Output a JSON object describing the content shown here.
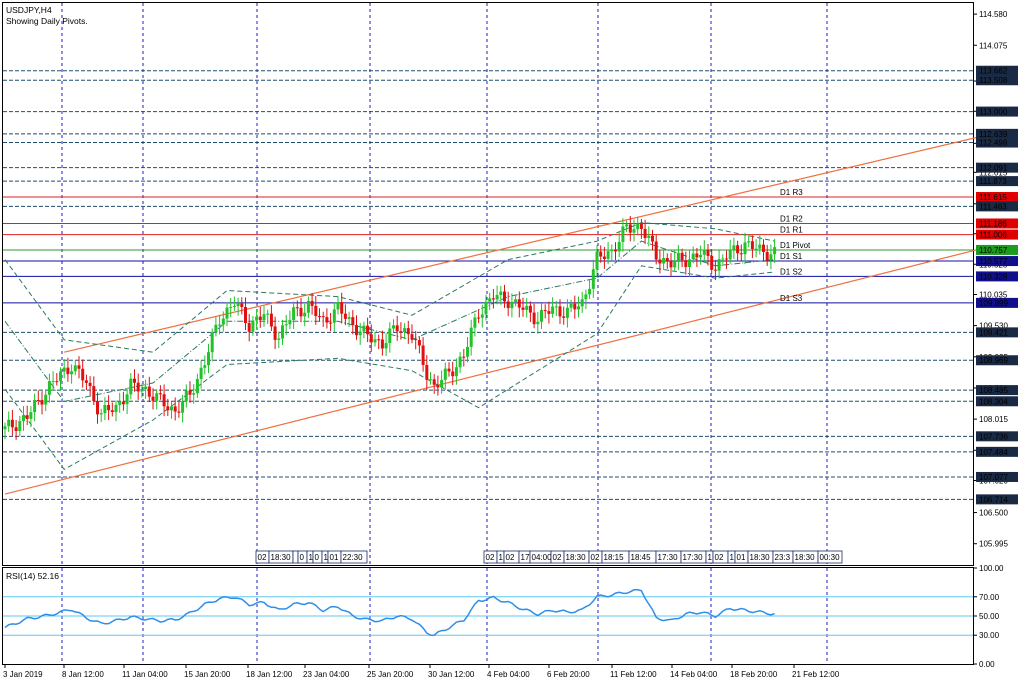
{
  "header": {
    "symbol": "USDJPY,H4",
    "subtitle": "Showing Daily Pivots."
  },
  "colors": {
    "grid": "#1e1ec8",
    "candle_up": "#22c22a",
    "candle_down": "#e01010",
    "channel": "#f07040",
    "bollinger": "#2b7a60",
    "pivot_line": "#2c9a2c",
    "resistance_line": "#e02020",
    "support_line": "#1010a0",
    "rsi_line": "#2f8fe8",
    "rsi_levels": "#5fc8f0",
    "label_resistance": "#e00000",
    "label_pivot": "#1c9c1c",
    "label_support": "#10108c",
    "label_dark": "#1a2a44"
  },
  "chart_data": [
    {
      "type": "candlestick",
      "title": "USDJPY,H4",
      "subtitle": "Showing Daily Pivots.",
      "ylim": [
        105.65,
        114.76
      ],
      "y_axis_ticks": [
        "114.580",
        "114.075",
        "113.495",
        "113.005",
        "112.485",
        "112.015",
        "111.505",
        "111.020",
        "110.525",
        "110.035",
        "109.530",
        "109.025",
        "108.520",
        "108.015",
        "107.510",
        "107.020",
        "106.500",
        "105.995"
      ],
      "x_tick_labels": [
        "3 Jan 2019",
        "8 Jan 12:00",
        "11 Jan 04:00",
        "15 Jan 20:00",
        "18 Jan 12:00",
        "23 Jan 04:00",
        "25 Jan 20:00",
        "30 Jan 12:00",
        "4 Feb 04:00",
        "6 Feb 20:00",
        "11 Feb 12:00",
        "14 Feb 04:00",
        "18 Feb 20:00",
        "21 Feb 12:00"
      ],
      "grid": true,
      "price_levels": [
        {
          "value": "113.662",
          "style": "dark"
        },
        {
          "value": "113.508",
          "style": "dark"
        },
        {
          "value": "113.000",
          "style": "dark"
        },
        {
          "value": "112.639",
          "style": "dark"
        },
        {
          "value": "112.498",
          "style": "dark"
        },
        {
          "value": "112.091",
          "style": "dark"
        },
        {
          "value": "111.873",
          "style": "dark"
        },
        {
          "value": "111.615",
          "style": "resistance"
        },
        {
          "value": "111.463",
          "style": "dark"
        },
        {
          "value": "111.186",
          "style": "resistance"
        },
        {
          "value": "111.006",
          "style": "resistance"
        },
        {
          "value": "110.757",
          "style": "pivot"
        },
        {
          "value": "110.577",
          "style": "support"
        },
        {
          "value": "110.328",
          "style": "support"
        },
        {
          "value": "109.899",
          "style": "support"
        },
        {
          "value": "109.421",
          "style": "dark"
        },
        {
          "value": "108.969",
          "style": "dark"
        },
        {
          "value": "108.485",
          "style": "dark"
        },
        {
          "value": "108.304",
          "style": "dark"
        },
        {
          "value": "107.736",
          "style": "dark"
        },
        {
          "value": "107.484",
          "style": "dark"
        },
        {
          "value": "107.077",
          "style": "dark"
        },
        {
          "value": "106.714",
          "style": "dark"
        }
      ],
      "pivot_labels": [
        {
          "label": "D1 R3",
          "value": 111.615,
          "style": "resistance"
        },
        {
          "label": "D1 R2",
          "value": 111.186,
          "style": "resistance"
        },
        {
          "label": "D1 R1",
          "value": 111.006,
          "style": "resistance"
        },
        {
          "label": "D1 Pivot",
          "value": 110.757,
          "style": "pivot"
        },
        {
          "label": "D1 S1",
          "value": 110.577,
          "style": "support"
        },
        {
          "label": "D1 S2",
          "value": 110.328,
          "style": "support"
        },
        {
          "label": "D1 S3",
          "value": 109.899,
          "style": "support"
        }
      ],
      "session_labels_group1": [
        "02",
        "18:30",
        "",
        "0",
        "1",
        "0",
        "1",
        "01",
        "22:30"
      ],
      "session_labels_group2": [
        "02",
        "1",
        "02",
        "17",
        "04:00",
        "02",
        "18:30",
        "02",
        "18:15",
        "18:45",
        "17:30",
        "17:30",
        "1",
        "02",
        "1",
        "01",
        "18:30",
        "23:3",
        "18:30",
        "00:30"
      ],
      "price_path": [
        [
          0,
          107.85
        ],
        [
          3,
          108.05
        ],
        [
          6,
          108.55
        ],
        [
          9,
          108.9
        ],
        [
          11,
          108.6
        ],
        [
          13,
          108.1
        ],
        [
          15,
          108.2
        ],
        [
          17,
          108.55
        ],
        [
          19,
          108.5
        ],
        [
          21,
          108.3
        ],
        [
          23,
          108.15
        ],
        [
          25,
          108.4
        ],
        [
          27,
          108.95
        ],
        [
          29,
          109.65
        ],
        [
          31,
          109.9
        ],
        [
          33,
          109.55
        ],
        [
          35,
          109.7
        ],
        [
          37,
          109.35
        ],
        [
          39,
          109.75
        ],
        [
          41,
          109.85
        ],
        [
          43,
          109.6
        ],
        [
          45,
          109.8
        ],
        [
          47,
          109.55
        ],
        [
          49,
          109.35
        ],
        [
          51,
          109.25
        ],
        [
          53,
          109.5
        ],
        [
          55,
          109.4
        ],
        [
          57,
          108.75
        ],
        [
          58,
          108.55
        ],
        [
          60,
          108.75
        ],
        [
          62,
          109.05
        ],
        [
          64,
          109.75
        ],
        [
          66,
          110.0
        ],
        [
          68,
          109.95
        ],
        [
          70,
          109.8
        ],
        [
          72,
          109.65
        ],
        [
          74,
          109.8
        ],
        [
          76,
          109.75
        ],
        [
          78,
          109.9
        ],
        [
          80,
          110.6
        ],
        [
          82,
          110.75
        ],
        [
          84,
          111.1
        ],
        [
          86,
          111.15
        ],
        [
          88,
          110.65
        ],
        [
          90,
          110.55
        ],
        [
          92,
          110.6
        ],
        [
          94,
          110.7
        ],
        [
          96,
          110.5
        ],
        [
          98,
          110.7
        ],
        [
          100,
          110.85
        ],
        [
          102,
          110.75
        ],
        [
          104,
          110.7
        ]
      ],
      "channel_upper": [
        [
          8,
          109.1
        ],
        [
          132,
          112.6
        ]
      ],
      "channel_lower": [
        [
          0,
          106.8
        ],
        [
          132,
          110.78
        ]
      ],
      "bollinger_upper": [
        [
          0,
          110.6
        ],
        [
          8,
          109.3
        ],
        [
          20,
          109.1
        ],
        [
          30,
          110.1
        ],
        [
          45,
          110.0
        ],
        [
          55,
          109.7
        ],
        [
          68,
          110.6
        ],
        [
          80,
          110.9
        ],
        [
          86,
          111.2
        ],
        [
          96,
          111.1
        ],
        [
          104,
          110.9
        ]
      ],
      "bollinger_middle": [
        [
          0,
          109.6
        ],
        [
          8,
          108.3
        ],
        [
          20,
          108.6
        ],
        [
          30,
          109.6
        ],
        [
          45,
          109.6
        ],
        [
          55,
          109.3
        ],
        [
          68,
          110.0
        ],
        [
          80,
          110.3
        ],
        [
          86,
          110.9
        ],
        [
          96,
          110.5
        ],
        [
          104,
          110.6
        ]
      ],
      "bollinger_lower": [
        [
          0,
          108.5
        ],
        [
          8,
          107.2
        ],
        [
          20,
          108.0
        ],
        [
          30,
          108.9
        ],
        [
          45,
          109.0
        ],
        [
          55,
          108.8
        ],
        [
          64,
          108.2
        ],
        [
          80,
          109.4
        ],
        [
          86,
          110.5
        ],
        [
          96,
          110.3
        ],
        [
          104,
          110.4
        ]
      ]
    },
    {
      "type": "line",
      "title": "RSI(14) 52.16",
      "ylim": [
        0,
        100
      ],
      "y_axis_ticks": [
        "100.00",
        "70.00",
        "50.00",
        "30.00",
        "0.00"
      ],
      "levels": [
        70,
        50,
        30
      ],
      "series": [
        {
          "name": "RSI(14)",
          "points": [
            [
              0,
              38
            ],
            [
              3,
              47
            ],
            [
              6,
              51
            ],
            [
              9,
              57
            ],
            [
              11,
              48
            ],
            [
              13,
              42
            ],
            [
              15,
              45
            ],
            [
              17,
              49
            ],
            [
              19,
              47
            ],
            [
              21,
              45
            ],
            [
              23,
              46
            ],
            [
              25,
              53
            ],
            [
              27,
              62
            ],
            [
              29,
              68
            ],
            [
              31,
              70
            ],
            [
              33,
              62
            ],
            [
              35,
              64
            ],
            [
              37,
              56
            ],
            [
              39,
              62
            ],
            [
              41,
              64
            ],
            [
              43,
              56
            ],
            [
              45,
              60
            ],
            [
              47,
              50
            ],
            [
              49,
              46
            ],
            [
              51,
              45
            ],
            [
              53,
              50
            ],
            [
              55,
              47
            ],
            [
              57,
              33
            ],
            [
              58,
              30
            ],
            [
              60,
              38
            ],
            [
              62,
              46
            ],
            [
              64,
              66
            ],
            [
              66,
              69
            ],
            [
              68,
              64
            ],
            [
              70,
              57
            ],
            [
              72,
              52
            ],
            [
              74,
              56
            ],
            [
              76,
              54
            ],
            [
              78,
              56
            ],
            [
              80,
              70
            ],
            [
              82,
              72
            ],
            [
              84,
              75
            ],
            [
              86,
              77
            ],
            [
              88,
              48
            ],
            [
              90,
              45
            ],
            [
              92,
              52
            ],
            [
              94,
              54
            ],
            [
              96,
              50
            ],
            [
              98,
              58
            ],
            [
              100,
              56
            ],
            [
              102,
              54
            ],
            [
              104,
              52.16
            ]
          ]
        }
      ]
    }
  ]
}
